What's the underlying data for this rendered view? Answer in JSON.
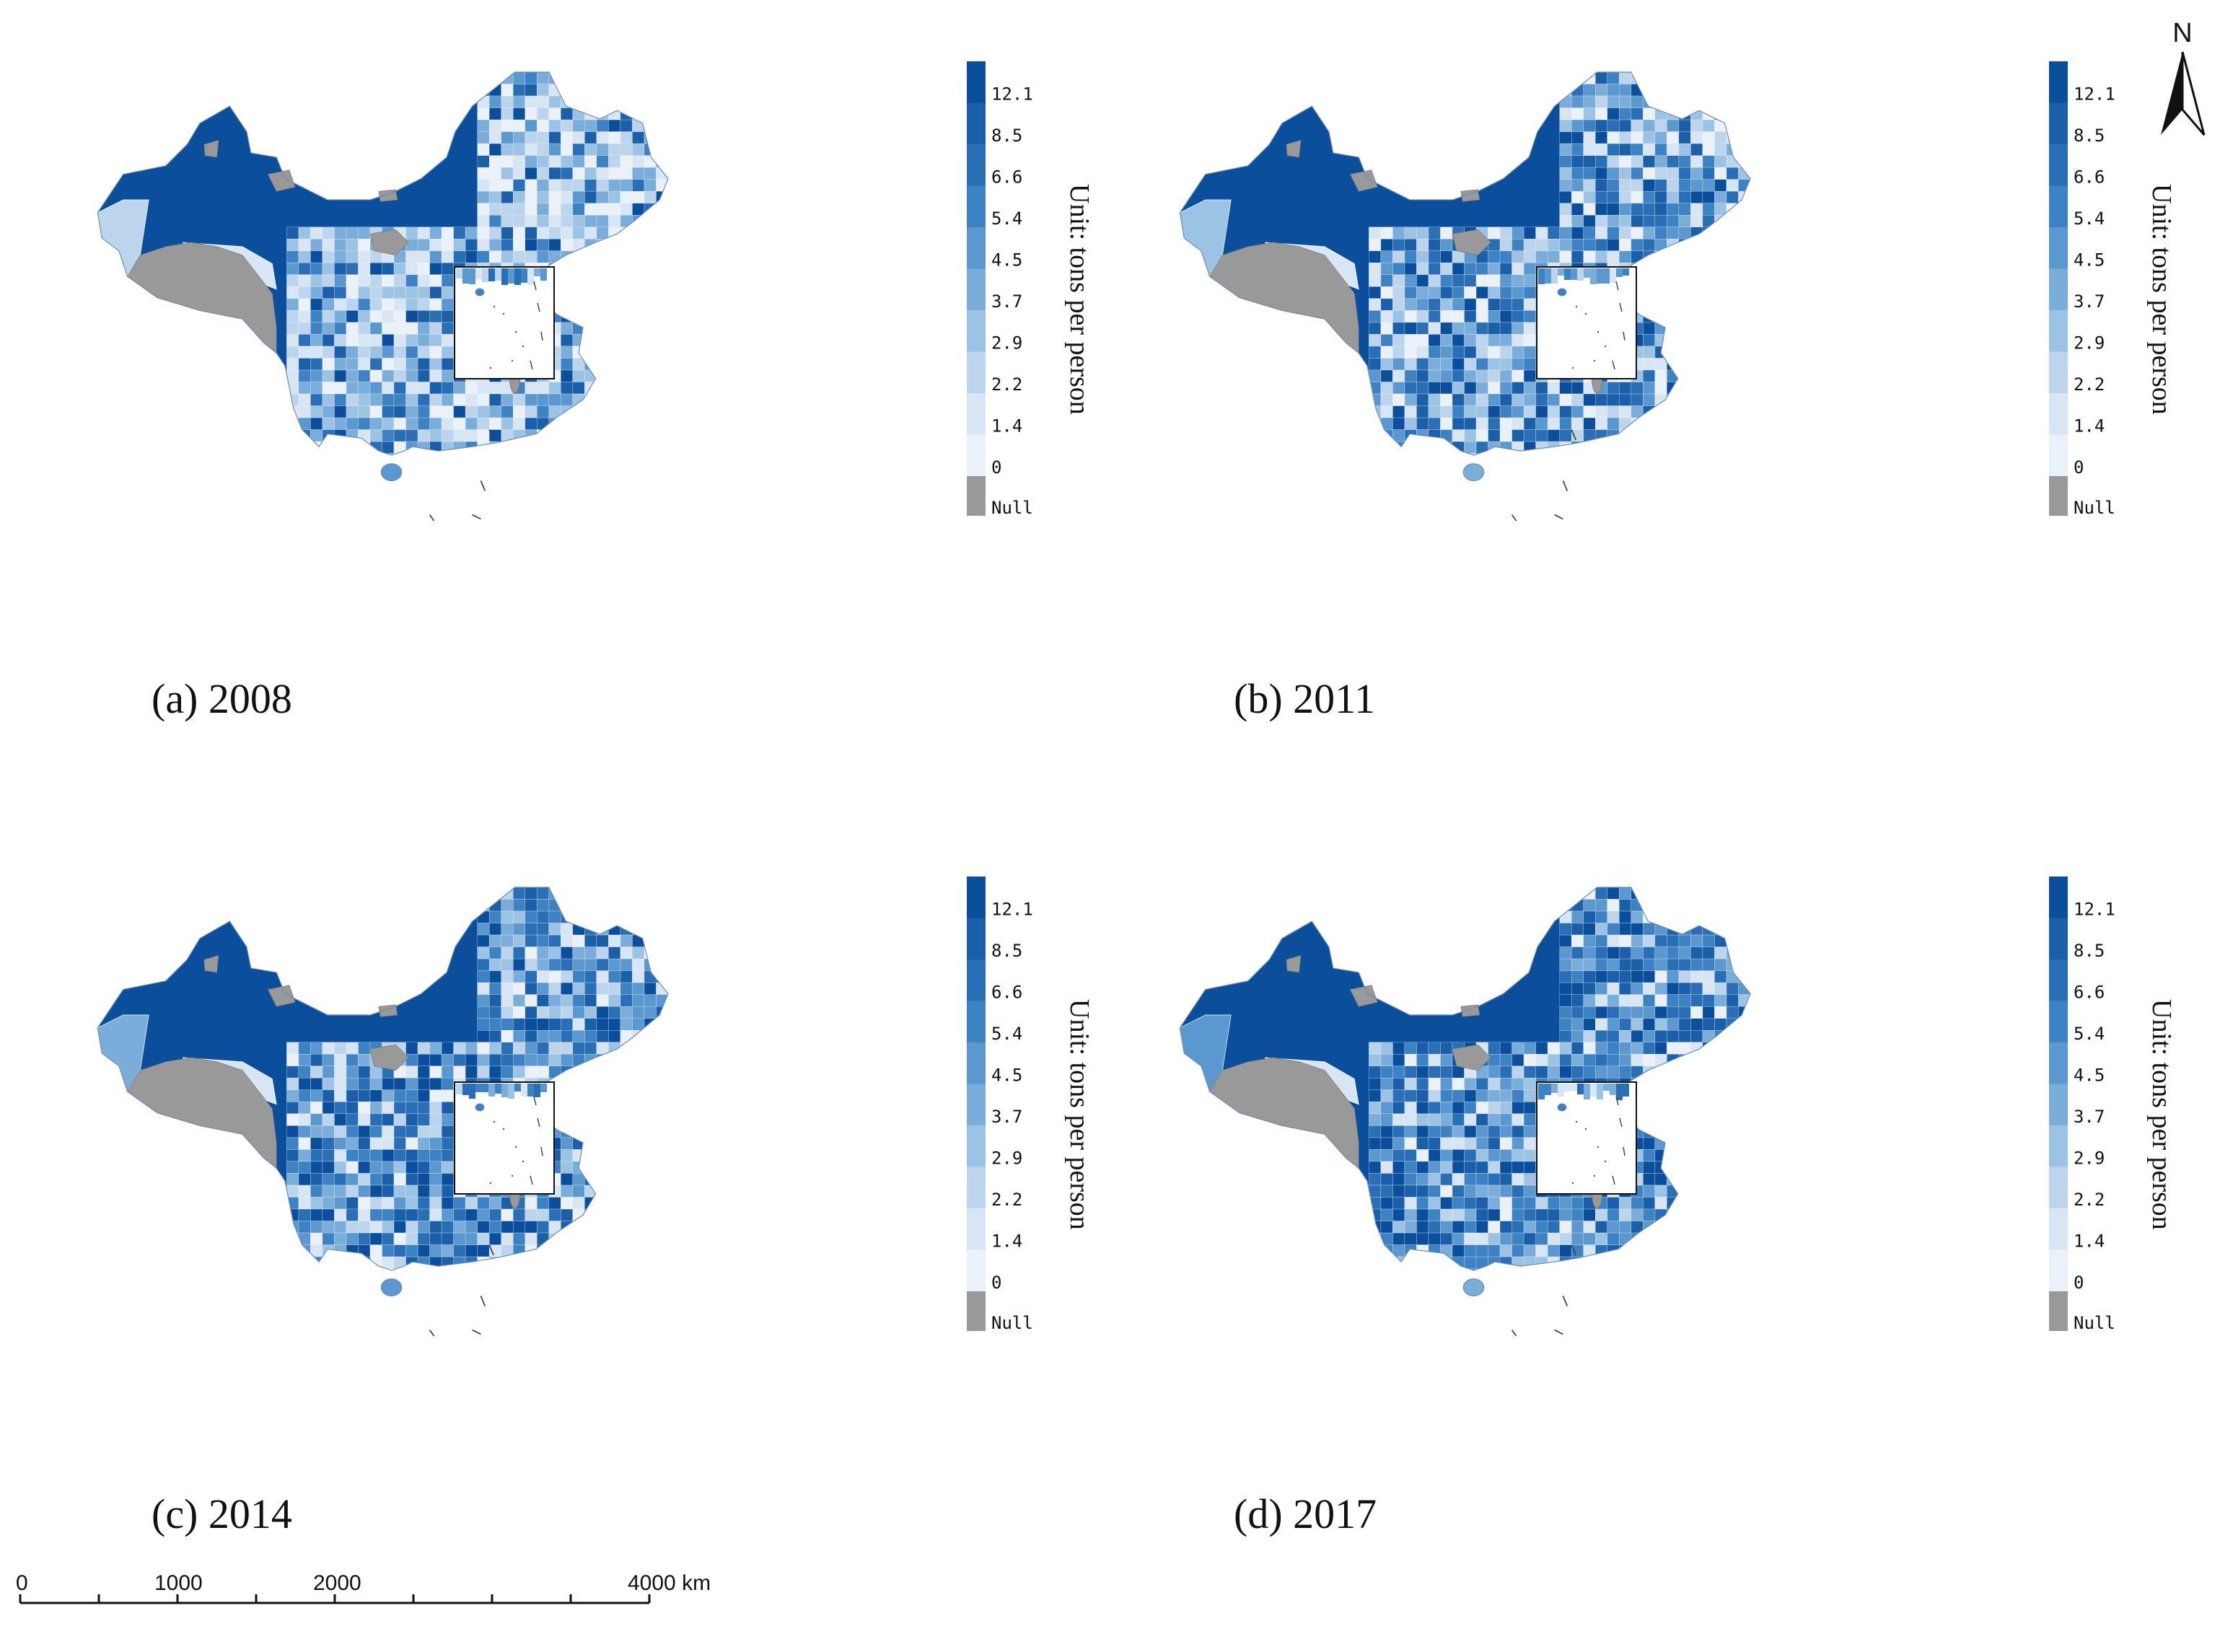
{
  "panels": [
    {
      "caption": "(a) 2008",
      "year": "2008"
    },
    {
      "caption": "(b) 2011",
      "year": "2011"
    },
    {
      "caption": "(c) 2014",
      "year": "2014"
    },
    {
      "caption": "(d) 2017",
      "year": "2017"
    }
  ],
  "legend": {
    "unit_label": "Unit: tons per person",
    "breaks": [
      "12.1",
      "8.5",
      "6.6",
      "5.4",
      "4.5",
      "3.7",
      "2.9",
      "2.2",
      "1.4",
      "0",
      "Null"
    ],
    "colors": [
      "#0b4f9c",
      "#1a5fa8",
      "#2a6fb5",
      "#3d82c2",
      "#5a98cf",
      "#7badda",
      "#9cc3e4",
      "#bcd5ec",
      "#d8e6f4",
      "#eaf1f9"
    ],
    "null_color": "#999999"
  },
  "scale_bar": {
    "labels": [
      "0",
      "1000",
      "2000",
      "4000 km"
    ]
  },
  "north_arrow": {
    "label": "N"
  }
}
